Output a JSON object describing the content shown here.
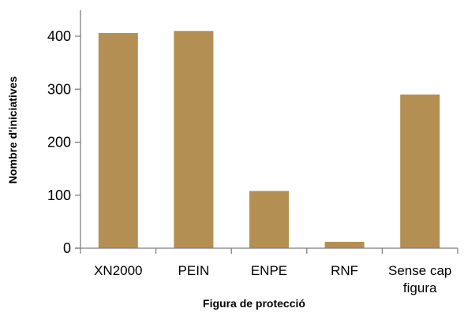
{
  "chart_data": {
    "type": "bar",
    "title": "",
    "xlabel": "Figura de protecció",
    "ylabel": "Nombre d'iniciatives",
    "categories": [
      [
        "XN2000"
      ],
      [
        "PEIN"
      ],
      [
        "ENPE"
      ],
      [
        "RNF"
      ],
      [
        "Sense cap",
        "figura"
      ]
    ],
    "values": [
      406,
      410,
      108,
      12,
      290
    ],
    "ylim": [
      0,
      400
    ],
    "yticks": [
      0,
      100,
      200,
      300,
      400
    ],
    "grid": false,
    "bar_color": "#B48F53",
    "axis_color": "#7F7F7F"
  }
}
